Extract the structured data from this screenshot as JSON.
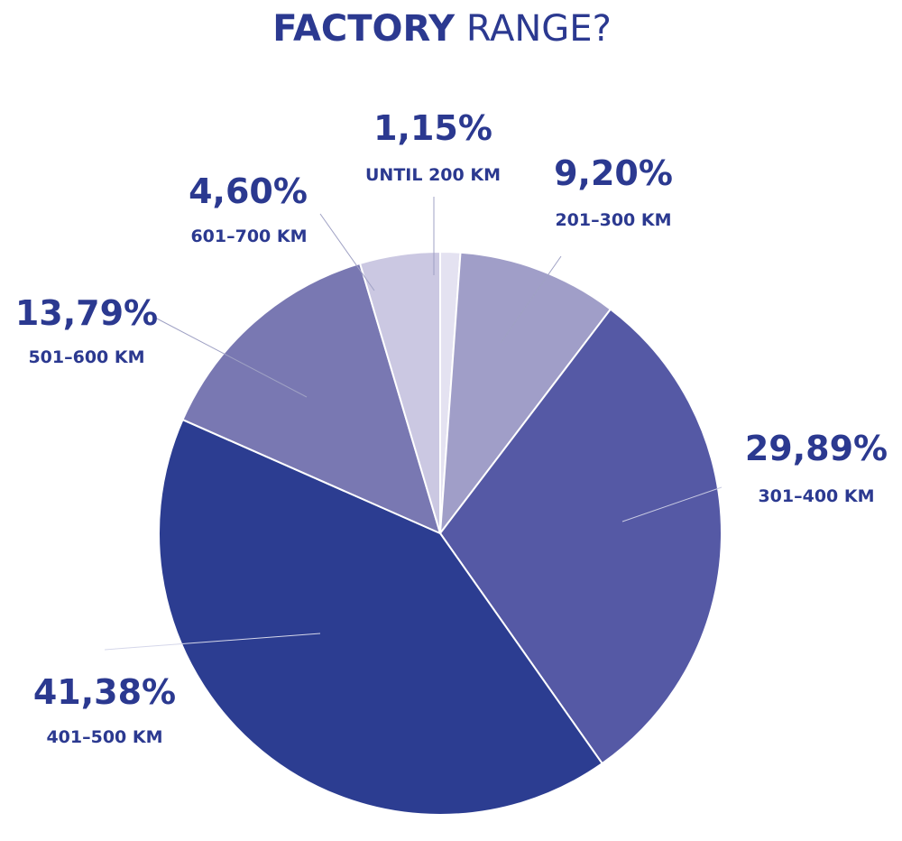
{
  "chart_data": {
    "type": "pie",
    "title_bold": "FACTORY",
    "title_rest": " RANGE?",
    "slices": [
      {
        "label": "UNTIL 200 KM",
        "value_text": "1,15%",
        "value": 1.15,
        "color": "#e4e2f1"
      },
      {
        "label": "201–300 KM",
        "value_text": "9,20%",
        "value": 9.2,
        "color": "#a09ec8"
      },
      {
        "label": "301–400 KM",
        "value_text": "29,89%",
        "value": 29.89,
        "color": "#5559a5"
      },
      {
        "label": "401–500 KM",
        "value_text": "41,38%",
        "value": 41.38,
        "color": "#2c3d91"
      },
      {
        "label": "501–600 KM",
        "value_text": "13,79%",
        "value": 13.79,
        "color": "#7978b2"
      },
      {
        "label": "601–700 KM",
        "value_text": "4,60%",
        "value": 4.6,
        "color": "#cbc8e2"
      }
    ],
    "text_color": "#2b3990"
  }
}
